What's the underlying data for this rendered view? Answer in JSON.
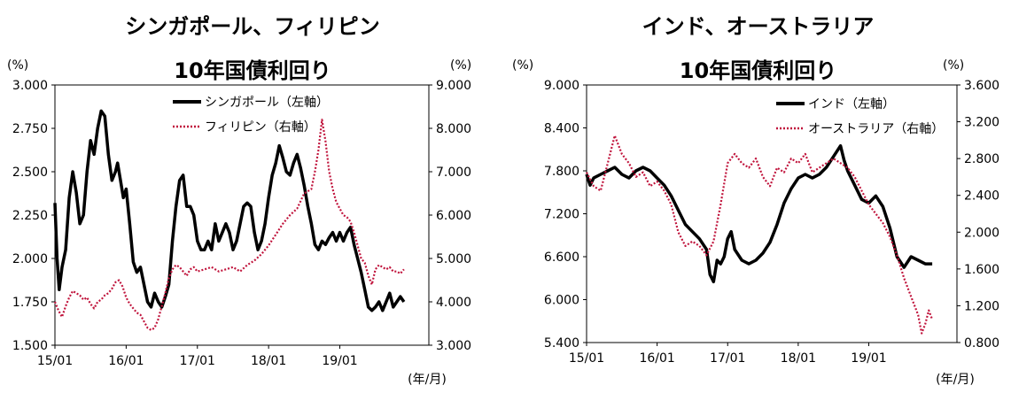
{
  "chart_data": [
    {
      "type": "line",
      "title": [
        "シンガポール、フィリピン",
        "10年国債利回り"
      ],
      "left_unit": "(%)",
      "right_unit": "(%)",
      "x_ticks": [
        "15/01",
        "16/01",
        "17/01",
        "18/01",
        "19/01"
      ],
      "x_unit": "(年/月)",
      "ylim_left": [
        1.5,
        3.0
      ],
      "yticks_left": [
        "1.500",
        "1.750",
        "2.000",
        "2.250",
        "2.500",
        "2.750",
        "3.000"
      ],
      "ylim_right": [
        3.0,
        9.0
      ],
      "yticks_right": [
        "3.000",
        "4.000",
        "5.000",
        "6.000",
        "7.000",
        "8.000",
        "9.000"
      ],
      "grid": false,
      "legend_placement": "top-center",
      "series": [
        {
          "name": "シンガポール（左軸）",
          "axis": "left",
          "style": "solid",
          "color": "#000000",
          "x": [
            0,
            0.03,
            0.06,
            0.1,
            0.15,
            0.2,
            0.25,
            0.3,
            0.35,
            0.4,
            0.45,
            0.5,
            0.55,
            0.6,
            0.65,
            0.7,
            0.75,
            0.8,
            0.85,
            0.88,
            0.92,
            0.96,
            1.0,
            1.05,
            1.1,
            1.15,
            1.2,
            1.25,
            1.3,
            1.35,
            1.4,
            1.45,
            1.5,
            1.55,
            1.6,
            1.65,
            1.7,
            1.75,
            1.8,
            1.85,
            1.9,
            1.95,
            2.0,
            2.05,
            2.1,
            2.15,
            2.2,
            2.25,
            2.3,
            2.35,
            2.4,
            2.45,
            2.5,
            2.55,
            2.6,
            2.65,
            2.7,
            2.75,
            2.8,
            2.85,
            2.9,
            2.95,
            3.0,
            3.05,
            3.1,
            3.15,
            3.2,
            3.25,
            3.3,
            3.35,
            3.4,
            3.45,
            3.5,
            3.55,
            3.6,
            3.65,
            3.7,
            3.75,
            3.8,
            3.85,
            3.9,
            3.95,
            4.0,
            4.05,
            4.1,
            4.15,
            4.2,
            4.25,
            4.3,
            4.35,
            4.4,
            4.45,
            4.5,
            4.55,
            4.6,
            4.65,
            4.7,
            4.75,
            4.8,
            4.85,
            4.9
          ],
          "values": [
            2.32,
            2.0,
            1.82,
            1.95,
            2.05,
            2.35,
            2.5,
            2.38,
            2.2,
            2.25,
            2.5,
            2.68,
            2.6,
            2.75,
            2.85,
            2.82,
            2.6,
            2.45,
            2.5,
            2.55,
            2.45,
            2.35,
            2.4,
            2.2,
            1.98,
            1.92,
            1.95,
            1.85,
            1.75,
            1.72,
            1.8,
            1.75,
            1.72,
            1.78,
            1.85,
            2.1,
            2.3,
            2.45,
            2.48,
            2.3,
            2.3,
            2.25,
            2.1,
            2.05,
            2.05,
            2.1,
            2.05,
            2.2,
            2.1,
            2.15,
            2.2,
            2.15,
            2.05,
            2.1,
            2.2,
            2.3,
            2.32,
            2.3,
            2.15,
            2.05,
            2.1,
            2.2,
            2.35,
            2.48,
            2.55,
            2.65,
            2.58,
            2.5,
            2.48,
            2.55,
            2.6,
            2.52,
            2.42,
            2.3,
            2.2,
            2.08,
            2.05,
            2.1,
            2.08,
            2.12,
            2.15,
            2.1,
            2.15,
            2.1,
            2.15,
            2.18,
            2.08,
            2.0,
            1.92,
            1.82,
            1.72,
            1.7,
            1.72,
            1.75,
            1.7,
            1.75,
            1.8,
            1.72,
            1.75,
            1.78,
            1.75
          ]
        },
        {
          "name": "フィリピン（右軸）",
          "axis": "right",
          "style": "dotted",
          "color": "#c0143c",
          "x": [
            0,
            0.05,
            0.1,
            0.15,
            0.2,
            0.25,
            0.3,
            0.35,
            0.4,
            0.45,
            0.5,
            0.55,
            0.6,
            0.65,
            0.7,
            0.75,
            0.8,
            0.85,
            0.9,
            0.95,
            1.0,
            1.05,
            1.1,
            1.15,
            1.2,
            1.25,
            1.3,
            1.35,
            1.4,
            1.45,
            1.5,
            1.55,
            1.6,
            1.65,
            1.7,
            1.75,
            1.8,
            1.85,
            1.9,
            1.95,
            2.0,
            2.1,
            2.2,
            2.3,
            2.4,
            2.5,
            2.6,
            2.7,
            2.8,
            2.9,
            3.0,
            3.1,
            3.2,
            3.3,
            3.4,
            3.5,
            3.6,
            3.65,
            3.7,
            3.75,
            3.8,
            3.85,
            3.9,
            3.95,
            4.0,
            4.05,
            4.1,
            4.15,
            4.2,
            4.25,
            4.3,
            4.35,
            4.4,
            4.45,
            4.5,
            4.55,
            4.6,
            4.65,
            4.7,
            4.75,
            4.8,
            4.85,
            4.9
          ],
          "values": [
            4.0,
            3.8,
            3.65,
            3.9,
            4.1,
            4.25,
            4.2,
            4.15,
            4.05,
            4.1,
            3.95,
            3.85,
            4.0,
            4.05,
            4.15,
            4.2,
            4.3,
            4.45,
            4.5,
            4.35,
            4.1,
            3.95,
            3.85,
            3.75,
            3.7,
            3.55,
            3.4,
            3.35,
            3.4,
            3.6,
            3.9,
            4.2,
            4.55,
            4.75,
            4.85,
            4.8,
            4.7,
            4.6,
            4.75,
            4.8,
            4.7,
            4.75,
            4.8,
            4.7,
            4.75,
            4.8,
            4.7,
            4.85,
            4.95,
            5.1,
            5.3,
            5.55,
            5.8,
            6.0,
            6.15,
            6.5,
            6.6,
            7.0,
            7.5,
            8.2,
            7.7,
            7.0,
            6.6,
            6.3,
            6.15,
            6.0,
            5.95,
            5.85,
            5.6,
            5.3,
            5.0,
            4.9,
            4.6,
            4.4,
            4.75,
            4.85,
            4.8,
            4.75,
            4.8,
            4.7,
            4.7,
            4.65,
            4.75
          ]
        }
      ]
    },
    {
      "type": "line",
      "title": [
        "インド、オーストラリア",
        "10年国債利回り"
      ],
      "left_unit": "(%)",
      "right_unit": "(%)",
      "x_ticks": [
        "15/01",
        "16/01",
        "17/01",
        "18/01",
        "19/01"
      ],
      "x_unit": "(年/月)",
      "ylim_left": [
        5.4,
        9.0
      ],
      "yticks_left": [
        "5.400",
        "6.000",
        "6.600",
        "7.200",
        "7.800",
        "8.400",
        "9.000"
      ],
      "ylim_right": [
        0.8,
        3.6
      ],
      "yticks_right": [
        "0.800",
        "1.200",
        "1.600",
        "2.000",
        "2.400",
        "2.800",
        "3.200",
        "3.600"
      ],
      "grid": false,
      "legend_placement": "top-right",
      "series": [
        {
          "name": "インド（左軸）",
          "axis": "left",
          "style": "solid",
          "color": "#000000",
          "x": [
            0,
            0.05,
            0.1,
            0.2,
            0.3,
            0.4,
            0.5,
            0.6,
            0.7,
            0.8,
            0.9,
            1.0,
            1.1,
            1.2,
            1.3,
            1.4,
            1.5,
            1.6,
            1.7,
            1.75,
            1.8,
            1.85,
            1.9,
            1.95,
            2.0,
            2.05,
            2.1,
            2.2,
            2.3,
            2.4,
            2.5,
            2.6,
            2.7,
            2.8,
            2.9,
            3.0,
            3.1,
            3.2,
            3.3,
            3.4,
            3.5,
            3.6,
            3.65,
            3.7,
            3.8,
            3.9,
            4.0,
            4.1,
            4.2,
            4.3,
            4.4,
            4.5,
            4.6,
            4.7,
            4.8,
            4.9
          ],
          "values": [
            7.75,
            7.6,
            7.7,
            7.75,
            7.8,
            7.85,
            7.75,
            7.7,
            7.8,
            7.85,
            7.8,
            7.7,
            7.6,
            7.45,
            7.25,
            7.05,
            6.95,
            6.85,
            6.7,
            6.35,
            6.25,
            6.55,
            6.5,
            6.6,
            6.85,
            6.95,
            6.7,
            6.55,
            6.5,
            6.55,
            6.65,
            6.8,
            7.05,
            7.35,
            7.55,
            7.7,
            7.75,
            7.7,
            7.75,
            7.85,
            8.0,
            8.15,
            7.95,
            7.8,
            7.6,
            7.4,
            7.35,
            7.45,
            7.3,
            7.0,
            6.6,
            6.45,
            6.6,
            6.55,
            6.5,
            6.5
          ]
        },
        {
          "name": "オーストラリア（右軸）",
          "axis": "right",
          "style": "dotted",
          "color": "#c0143c",
          "x": [
            0,
            0.1,
            0.2,
            0.3,
            0.4,
            0.5,
            0.6,
            0.7,
            0.8,
            0.9,
            1.0,
            1.1,
            1.2,
            1.3,
            1.4,
            1.5,
            1.6,
            1.7,
            1.8,
            1.9,
            2.0,
            2.1,
            2.2,
            2.3,
            2.4,
            2.5,
            2.6,
            2.7,
            2.8,
            2.9,
            3.0,
            3.1,
            3.2,
            3.3,
            3.4,
            3.5,
            3.6,
            3.7,
            3.8,
            3.9,
            4.0,
            4.1,
            4.2,
            4.3,
            4.4,
            4.5,
            4.6,
            4.7,
            4.75,
            4.8,
            4.85,
            4.9
          ],
          "values": [
            2.65,
            2.5,
            2.45,
            2.75,
            3.05,
            2.85,
            2.75,
            2.6,
            2.65,
            2.5,
            2.55,
            2.45,
            2.3,
            2.0,
            1.85,
            1.9,
            1.85,
            1.75,
            1.9,
            2.3,
            2.75,
            2.85,
            2.75,
            2.7,
            2.8,
            2.6,
            2.5,
            2.7,
            2.65,
            2.8,
            2.75,
            2.85,
            2.65,
            2.7,
            2.75,
            2.8,
            2.75,
            2.7,
            2.6,
            2.45,
            2.3,
            2.2,
            2.1,
            1.95,
            1.75,
            1.5,
            1.3,
            1.1,
            0.9,
            1.0,
            1.15,
            1.05
          ]
        }
      ]
    }
  ]
}
